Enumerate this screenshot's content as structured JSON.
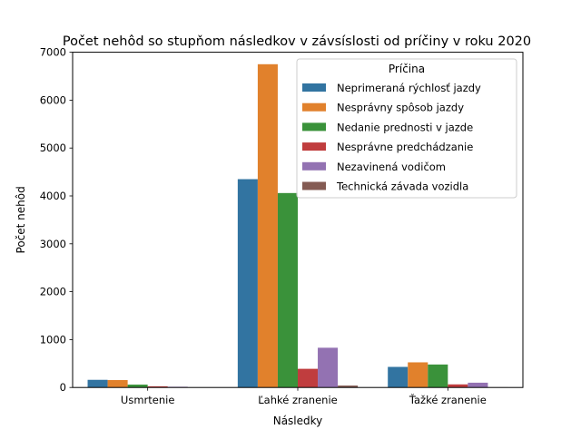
{
  "chart_data": {
    "type": "bar",
    "title": "Počet nehôd so stupňom následkov v závsíslosti od príčiny v roku 2020",
    "xlabel": "Následky",
    "ylabel": "Počet nehôd",
    "categories": [
      "Usmrtenie",
      "Ľahké zranenie",
      "Ťažké zranenie"
    ],
    "ylim": [
      0,
      7000
    ],
    "yticks": [
      0,
      1000,
      2000,
      3000,
      4000,
      5000,
      6000,
      7000
    ],
    "grid": false,
    "legend": {
      "title": "Príčina",
      "placement": "top-right"
    },
    "series": [
      {
        "name": "Neprimeraná rýchlosť jazdy",
        "color": "#3274a1",
        "values": [
          160,
          4350,
          430
        ]
      },
      {
        "name": "Nesprávny spôsob jazdy",
        "color": "#e1812c",
        "values": [
          155,
          6750,
          525
        ]
      },
      {
        "name": "Nedanie prednosti v jazde",
        "color": "#3a923a",
        "values": [
          60,
          4060,
          480
        ]
      },
      {
        "name": "Nesprávne predchádzanie",
        "color": "#c03d3e",
        "values": [
          25,
          390,
          65
        ]
      },
      {
        "name": "Nezavinená vodičom",
        "color": "#9372b2",
        "values": [
          15,
          830,
          100
        ]
      },
      {
        "name": "Technická závada vozidla",
        "color": "#845b53",
        "values": [
          2,
          40,
          5
        ]
      }
    ]
  }
}
